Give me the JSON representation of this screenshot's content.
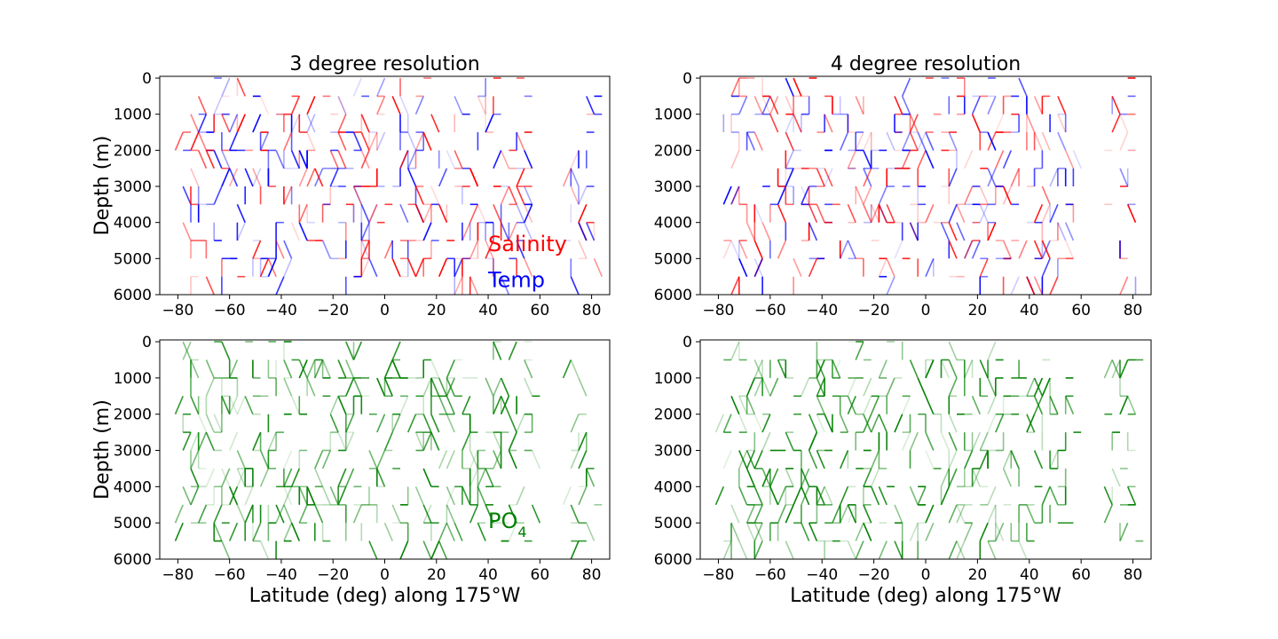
{
  "chart_data": [
    {
      "type": "scatter",
      "title": "3 degree resolution",
      "xlabel": "",
      "ylabel": "Depth (m)",
      "xlim": [
        -87,
        87
      ],
      "ylim": [
        6000,
        -50
      ],
      "x_ticks": [
        -80,
        -60,
        -40,
        -20,
        0,
        20,
        40,
        60,
        80
      ],
      "y_ticks": [
        0,
        1000,
        2000,
        3000,
        4000,
        5000,
        6000
      ],
      "series": [
        {
          "name": "Salinity",
          "color": "#ff0000"
        },
        {
          "name": "Temp",
          "color": "#0000ff"
        }
      ]
    },
    {
      "type": "scatter",
      "title": "4 degree resolution",
      "xlabel": "",
      "ylabel": "",
      "xlim": [
        -87,
        87
      ],
      "ylim": [
        6000,
        -50
      ],
      "x_ticks": [
        -80,
        -60,
        -40,
        -20,
        0,
        20,
        40,
        60,
        80
      ],
      "y_ticks": [
        0,
        1000,
        2000,
        3000,
        4000,
        5000,
        6000
      ],
      "series": [
        {
          "color": "#ff0000"
        },
        {
          "color": "#0000ff"
        }
      ]
    },
    {
      "type": "scatter",
      "title": "",
      "xlabel": "Latitude (deg) along 175°W",
      "ylabel": "Depth (m)",
      "xlim": [
        -87,
        87
      ],
      "ylim": [
        6000,
        -50
      ],
      "x_ticks": [
        -80,
        -60,
        -40,
        -20,
        0,
        20,
        40,
        60,
        80
      ],
      "y_ticks": [
        0,
        1000,
        2000,
        3000,
        4000,
        5000,
        6000
      ],
      "series": [
        {
          "name": "PO",
          "sub": "4",
          "color": "#008000"
        }
      ]
    },
    {
      "type": "scatter",
      "title": "",
      "xlabel": "Latitude (deg) along 175°W",
      "ylabel": "",
      "xlim": [
        -87,
        87
      ],
      "ylim": [
        6000,
        -50
      ],
      "x_ticks": [
        -80,
        -60,
        -40,
        -20,
        0,
        20,
        40,
        60,
        80
      ],
      "y_ticks": [
        0,
        1000,
        2000,
        3000,
        4000,
        5000,
        6000
      ],
      "series": [
        {
          "color": "#008000"
        }
      ]
    }
  ]
}
